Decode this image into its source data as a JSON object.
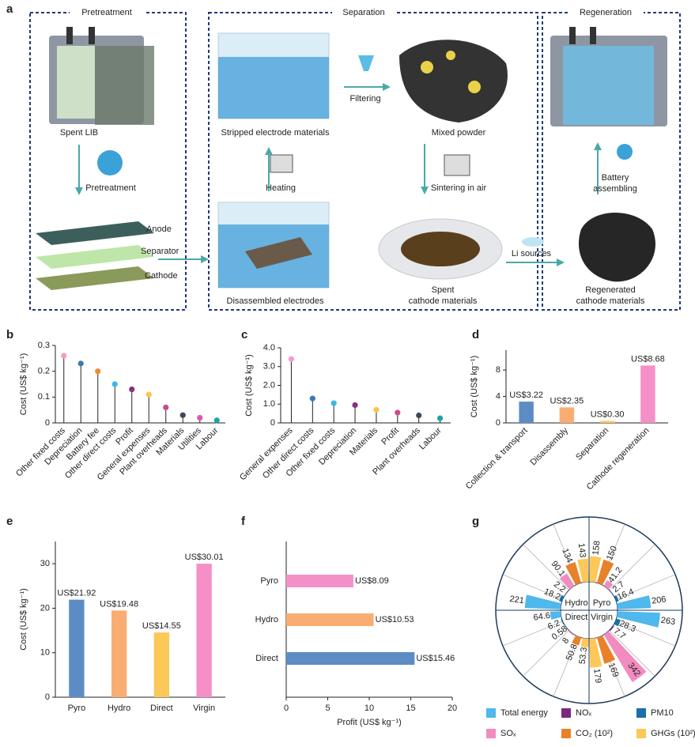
{
  "diagram": {
    "label": "a",
    "stages": [
      "Pretreatment",
      "Separation",
      "Regeneration"
    ],
    "nodes": [
      [
        "Spent LIB"
      ],
      [
        "Pretreatment"
      ],
      [
        "Anode"
      ],
      [
        "Separator"
      ],
      [
        "Cathode"
      ],
      [
        "Stripped electrode materials"
      ],
      [
        "Filtering"
      ],
      [
        "Mixed powder"
      ],
      [
        "Heating"
      ],
      [
        "Sintering in air"
      ],
      [
        "Disassembled electrodes"
      ],
      [
        "Spent",
        "cathode materials"
      ],
      [
        "Li sources"
      ],
      [
        "Battery",
        "assembling"
      ],
      [
        "Regenerated",
        "cathode materials"
      ]
    ]
  },
  "chart_data": [
    {
      "type": "lollipop",
      "label": "b",
      "ylabel": "Cost (US$ kg⁻¹)",
      "categories": [
        "Other fixed costs",
        "Depreciation",
        "Battery fee",
        "Other direct costs",
        "Profit",
        "General expenses",
        "Plant overheads",
        "Materials",
        "Utilities",
        "Labour"
      ],
      "values": [
        0.26,
        0.23,
        0.2,
        0.15,
        0.13,
        0.11,
        0.06,
        0.03,
        0.02,
        0.01
      ],
      "colors": [
        "#f49ac8",
        "#3a78b5",
        "#f08c2e",
        "#3bb6e8",
        "#8b2f7e",
        "#fbc451",
        "#c94b8e",
        "#3b4a58",
        "#e052b6",
        "#1ca3a8"
      ],
      "ylim": [
        0,
        0.3
      ],
      "yticks": [
        0,
        0.1,
        0.2,
        0.3
      ]
    },
    {
      "type": "lollipop",
      "label": "c",
      "ylabel": "Cost (US$ kg⁻¹)",
      "categories": [
        "General expenses",
        "Other direct costs",
        "Other fixed costs",
        "Depreciation",
        "Materials",
        "Profit",
        "Plant overheads",
        "Labour"
      ],
      "values": [
        3.4,
        1.3,
        1.05,
        0.95,
        0.7,
        0.55,
        0.4,
        0.25
      ],
      "colors": [
        "#f49ac8",
        "#3a78b5",
        "#3bb6e8",
        "#8b2f7e",
        "#fbc451",
        "#c94b8e",
        "#3b4a58",
        "#1ca3a8"
      ],
      "ylim": [
        0,
        4
      ],
      "yticks": [
        0,
        {
          "value": 1,
          "label": "1.0"
        },
        {
          "value": 2,
          "label": "2.0"
        },
        {
          "value": 3,
          "label": "3.0"
        },
        {
          "value": 4,
          "label": "4.0"
        }
      ]
    },
    {
      "type": "bar",
      "label": "d",
      "ylabel": "Cost (US$ kg⁻¹)",
      "rotate_labels": true,
      "categories": [
        "Collection & transport",
        "Disassembly",
        "Separation",
        "Cathode regeneration"
      ],
      "values": [
        3.22,
        2.35,
        0.3,
        8.68
      ],
      "value_labels": [
        "US$3.22",
        "US$2.35",
        "US$0.30",
        "US$8.68"
      ],
      "colors": [
        "#5b8dc4",
        "#f9ad72",
        "#fcc85a",
        "#f58fc8"
      ],
      "ylim": [
        0,
        11
      ],
      "yticks": [
        0,
        4,
        8
      ]
    },
    {
      "type": "bar",
      "label": "e",
      "ylabel": "Cost (US$ kg⁻¹)",
      "rotate_labels": false,
      "categories": [
        "Pyro",
        "Hydro",
        "Direct",
        "Virgin"
      ],
      "values": [
        21.92,
        19.48,
        14.55,
        30.01
      ],
      "value_labels": [
        "US$21.92",
        "US$19.48",
        "US$14.55",
        "US$30.01"
      ],
      "colors": [
        "#5b8dc4",
        "#f9ad72",
        "#fcc85a",
        "#f58fc8"
      ],
      "ylim": [
        0,
        35
      ],
      "yticks": [
        0,
        10,
        20,
        30
      ]
    },
    {
      "type": "barh",
      "label": "f",
      "xlabel": "Profit (US$ kg⁻¹)",
      "categories": [
        "Pyro",
        "Hydro",
        "Direct"
      ],
      "values": [
        8.09,
        10.53,
        15.46
      ],
      "value_labels": [
        "US$8.09",
        "US$10.53",
        "US$15.46"
      ],
      "colors": [
        "#f58fc8",
        "#f9ad72",
        "#5b8dc4"
      ],
      "xlim": [
        0,
        20
      ],
      "xticks": [
        0,
        5,
        10,
        15,
        20
      ]
    },
    {
      "type": "polar_bar",
      "label": "g",
      "groups": [
        "Pyro",
        "Hydro",
        "Direct",
        "Virgin"
      ],
      "series": [
        {
          "name": "Total energy",
          "color": "#4fb8ec",
          "values": [
            206,
            221,
            64.6,
            263
          ]
        },
        {
          "name": "NOₓ",
          "color": "#7a2a7e",
          "values": [
            2.7,
            2.2,
            0.58,
            7.7
          ]
        },
        {
          "name": "PM10",
          "color": "#1a6fa8",
          "values": [
            16.4,
            18.2,
            6.2,
            28.3
          ]
        },
        {
          "name": "SOₓ",
          "color": "#f28cc0",
          "values": [
            41.2,
            90.1,
            8.0,
            342
          ]
        },
        {
          "name": "CO₂ (10²)",
          "color": "#e8822a",
          "values": [
            150,
            134,
            50.8,
            169
          ]
        },
        {
          "name": "GHGs (10²)",
          "color": "#fcc85a",
          "values": [
            158,
            143,
            53.3,
            179
          ]
        }
      ],
      "rlim": [
        0,
        400
      ]
    }
  ]
}
